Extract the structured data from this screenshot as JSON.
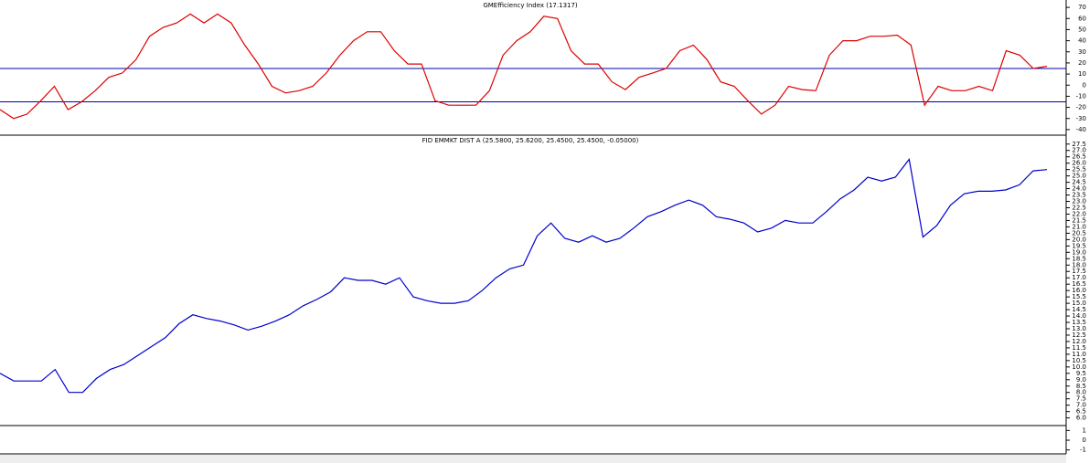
{
  "chart_data": [
    {
      "type": "line",
      "title": "GMEfficiency Index (17.1317)",
      "ylim": [
        -45,
        75
      ],
      "yticks": [
        70,
        60,
        50,
        40,
        30,
        20,
        10,
        0,
        -10,
        -20,
        -30,
        -40
      ],
      "hlines": [
        {
          "value": 15,
          "color": "#0000aa"
        },
        {
          "value": -15,
          "color": "#0000aa"
        }
      ],
      "series": [
        {
          "color": "#dd0000",
          "values": [
            -22,
            -30,
            -26,
            -14,
            -1,
            -22,
            -15,
            -5,
            7,
            11,
            23,
            44,
            52,
            56,
            64,
            56,
            64,
            56,
            36,
            19,
            -1,
            -7,
            -5,
            -1,
            11,
            27,
            40,
            48,
            48,
            31,
            19,
            19,
            -14,
            -18,
            -18,
            -18,
            -5,
            27,
            40,
            48,
            62,
            60,
            31,
            19,
            19,
            3,
            -4,
            7,
            11,
            15,
            31,
            36,
            23,
            3,
            -1,
            -14,
            -26,
            -18,
            -1,
            -4,
            -5,
            27,
            40,
            40,
            44,
            44,
            45,
            36,
            -18,
            -1,
            -5,
            -5,
            -1,
            -5,
            31,
            27,
            15,
            17
          ]
        }
      ]
    },
    {
      "type": "line",
      "title": "FID EMMKT DIST A (25.5800, 25.6200, 25.4500, 25.4500, -0.05000)",
      "ylim": [
        5.4,
        28.2
      ],
      "yticks": [
        27.5,
        {
          "value": 27,
          "label": "27.0"
        },
        26.5,
        {
          "value": 26,
          "label": "26.0"
        },
        25.5,
        {
          "value": 25,
          "label": "25.0"
        },
        24.5,
        {
          "value": 24,
          "label": "24.0"
        },
        23.5,
        {
          "value": 23,
          "label": "23.0"
        },
        22.5,
        {
          "value": 22,
          "label": "22.0"
        },
        21.5,
        {
          "value": 21,
          "label": "21.0"
        },
        20.5,
        {
          "value": 20,
          "label": "20.0"
        },
        19.5,
        {
          "value": 19,
          "label": "19.0"
        },
        18.5,
        {
          "value": 18,
          "label": "18.0"
        },
        17.5,
        {
          "value": 17,
          "label": "17.0"
        },
        16.5,
        {
          "value": 16,
          "label": "16.0"
        },
        15.5,
        {
          "value": 15,
          "label": "15.0"
        },
        14.5,
        {
          "value": 14,
          "label": "14.0"
        },
        13.5,
        {
          "value": 13,
          "label": "13.0"
        },
        12.5,
        {
          "value": 12,
          "label": "12.0"
        },
        11.5,
        {
          "value": 11,
          "label": "11.0"
        },
        10.5,
        {
          "value": 10,
          "label": "10.0"
        },
        9.5,
        {
          "value": 9,
          "label": "9.0"
        },
        8.5,
        {
          "value": 8,
          "label": "8.0"
        },
        7.5,
        {
          "value": 7,
          "label": "7.0"
        },
        6.5,
        {
          "value": 6,
          "label": "6.0"
        }
      ],
      "series": [
        {
          "color": "#0000cc",
          "values": [
            9.5,
            8.9,
            8.9,
            8.9,
            9.8,
            8.0,
            8.0,
            9.1,
            9.8,
            10.2,
            10.9,
            11.6,
            12.3,
            13.4,
            14.1,
            13.8,
            13.6,
            13.3,
            12.9,
            13.2,
            13.6,
            14.1,
            14.8,
            15.3,
            15.9,
            17.0,
            16.8,
            16.8,
            16.5,
            17.0,
            15.5,
            15.2,
            15.0,
            15.0,
            15.2,
            16.0,
            17.0,
            17.7,
            18.0,
            20.3,
            21.3,
            20.1,
            19.8,
            20.3,
            19.8,
            20.1,
            20.9,
            21.8,
            22.2,
            22.7,
            23.1,
            22.7,
            21.8,
            21.6,
            21.3,
            20.6,
            20.9,
            21.5,
            21.3,
            21.3,
            22.2,
            23.2,
            23.9,
            24.9,
            24.6,
            24.9,
            26.3,
            20.2,
            21.1,
            22.7,
            23.6,
            23.8,
            23.8,
            23.9,
            24.3,
            25.4,
            25.5
          ]
        }
      ]
    },
    {
      "type": "line",
      "ylim": [
        -1.4,
        1.5
      ],
      "yticks": [
        1,
        0,
        -1
      ]
    }
  ]
}
